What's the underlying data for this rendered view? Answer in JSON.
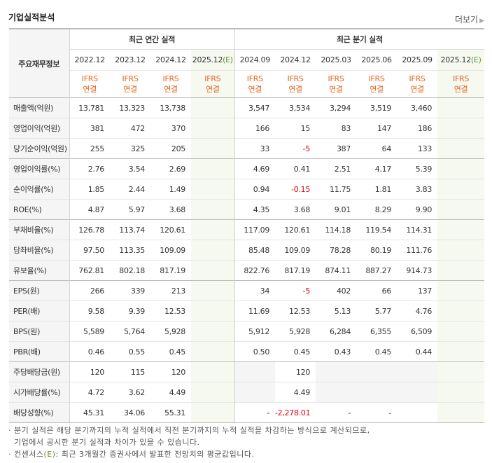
{
  "header": {
    "title": "기업실적분석",
    "more_label": "더보기",
    "more_icon": "chevron-right-icon"
  },
  "table": {
    "row_header_label": "주요재무정보",
    "groups": [
      {
        "label": "최근 연간 실적",
        "span": 4
      },
      {
        "label": "최근 분기 실적",
        "span": 6
      }
    ],
    "periods": [
      "2022.12",
      "2023.12",
      "2024.12",
      "2025.12(E)",
      "2024.09",
      "2024.12",
      "2025.03",
      "2025.06",
      "2025.09",
      "2025.12(E)"
    ],
    "ifrs_line1": "IFRS",
    "ifrs_line2": "연결",
    "rows": [
      {
        "label": "매출액(억원)",
        "values": [
          "13,781",
          "13,323",
          "13,738",
          "",
          "3,547",
          "3,534",
          "3,294",
          "3,519",
          "3,460",
          ""
        ]
      },
      {
        "label": "영업이익(억원)",
        "values": [
          "381",
          "472",
          "370",
          "",
          "166",
          "15",
          "83",
          "147",
          "186",
          ""
        ]
      },
      {
        "label": "당기순이익(억원)",
        "values": [
          "255",
          "325",
          "205",
          "",
          "33",
          "-5",
          "387",
          "64",
          "133",
          ""
        ]
      },
      {
        "label": "영업이익률(%)",
        "values": [
          "2.76",
          "3.54",
          "2.69",
          "",
          "4.69",
          "0.41",
          "2.51",
          "4.17",
          "5.39",
          ""
        ]
      },
      {
        "label": "순이익률(%)",
        "values": [
          "1.85",
          "2.44",
          "1.49",
          "",
          "0.94",
          "-0.15",
          "11.75",
          "1.81",
          "3.83",
          ""
        ]
      },
      {
        "label": "ROE(%)",
        "values": [
          "4.87",
          "5.97",
          "3.68",
          "",
          "4.35",
          "3.68",
          "9.01",
          "8.29",
          "9.90",
          ""
        ]
      },
      {
        "label": "부채비율(%)",
        "values": [
          "126.78",
          "113.74",
          "120.61",
          "",
          "117.09",
          "120.61",
          "114.18",
          "119.54",
          "114.31",
          ""
        ]
      },
      {
        "label": "당좌비율(%)",
        "values": [
          "97.50",
          "113.35",
          "109.09",
          "",
          "85.48",
          "109.09",
          "78.28",
          "80.19",
          "111.76",
          ""
        ]
      },
      {
        "label": "유보율(%)",
        "values": [
          "762.81",
          "802.18",
          "817.19",
          "",
          "822.76",
          "817.19",
          "874.11",
          "887.27",
          "914.73",
          ""
        ]
      },
      {
        "label": "EPS(원)",
        "values": [
          "266",
          "339",
          "213",
          "",
          "34",
          "-5",
          "402",
          "66",
          "137",
          ""
        ]
      },
      {
        "label": "PER(배)",
        "values": [
          "9.58",
          "9.39",
          "12.53",
          "",
          "11.69",
          "12.53",
          "5.13",
          "5.77",
          "4.76",
          ""
        ]
      },
      {
        "label": "BPS(원)",
        "values": [
          "5,589",
          "5,764",
          "5,928",
          "",
          "5,912",
          "5,928",
          "6,284",
          "6,355",
          "6,509",
          ""
        ]
      },
      {
        "label": "PBR(배)",
        "values": [
          "0.46",
          "0.55",
          "0.45",
          "",
          "0.50",
          "0.45",
          "0.43",
          "0.45",
          "0.44",
          ""
        ]
      },
      {
        "label": "주당배당금(원)",
        "values": [
          "120",
          "115",
          "120",
          "",
          "",
          "120",
          "",
          "",
          "",
          ""
        ]
      },
      {
        "label": "시가배당률(%)",
        "values": [
          "4.72",
          "3.62",
          "4.49",
          "",
          "",
          "4.49",
          "",
          "",
          "",
          ""
        ]
      },
      {
        "label": "배당성향(%)",
        "values": [
          "45.31",
          "34.06",
          "55.31",
          "",
          "-",
          "-2,278.01",
          "-",
          "-",
          "",
          ""
        ]
      }
    ]
  },
  "notes": {
    "line1": "분기 실적은 해당 분기까지의 누적 실적에서 직전 분기까지의 누적 실적을 차감하는 방식으로 계산되므로,",
    "line2": "기업에서 공시한 분기 실적과 차이가 있을 수 있습니다.",
    "line3_prefix": "컨센서스",
    "line3_mark": "(E)",
    "line3_rest": ": 최근 3개월간 증권사에서 발표한 전망치의 평균값입니다."
  },
  "colors": {
    "ifrs": "#e8641d",
    "estimate": "#6a8f2f",
    "negative": "#e0000b",
    "consensus_bg": "#f5f9f0"
  }
}
